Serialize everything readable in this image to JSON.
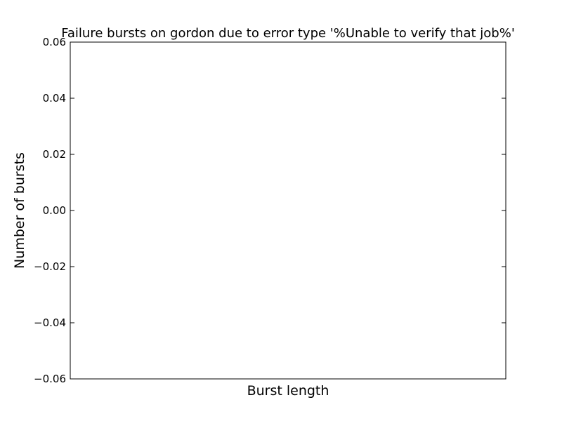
{
  "chart_data": {
    "type": "bar",
    "title": "Failure bursts on gordon due to error type '%Unable to verify that job%'",
    "xlabel": "Burst length",
    "ylabel": "Number of bursts",
    "ylim": [
      -0.06,
      0.06
    ],
    "yticks": [
      -0.06,
      -0.04,
      -0.02,
      0.0,
      0.02,
      0.04,
      0.06
    ],
    "ytick_labels": [
      "−0.06",
      "−0.04",
      "−0.02",
      "0.00",
      "0.02",
      "0.04",
      "0.06"
    ],
    "categories": [],
    "values": [],
    "grid": false
  }
}
